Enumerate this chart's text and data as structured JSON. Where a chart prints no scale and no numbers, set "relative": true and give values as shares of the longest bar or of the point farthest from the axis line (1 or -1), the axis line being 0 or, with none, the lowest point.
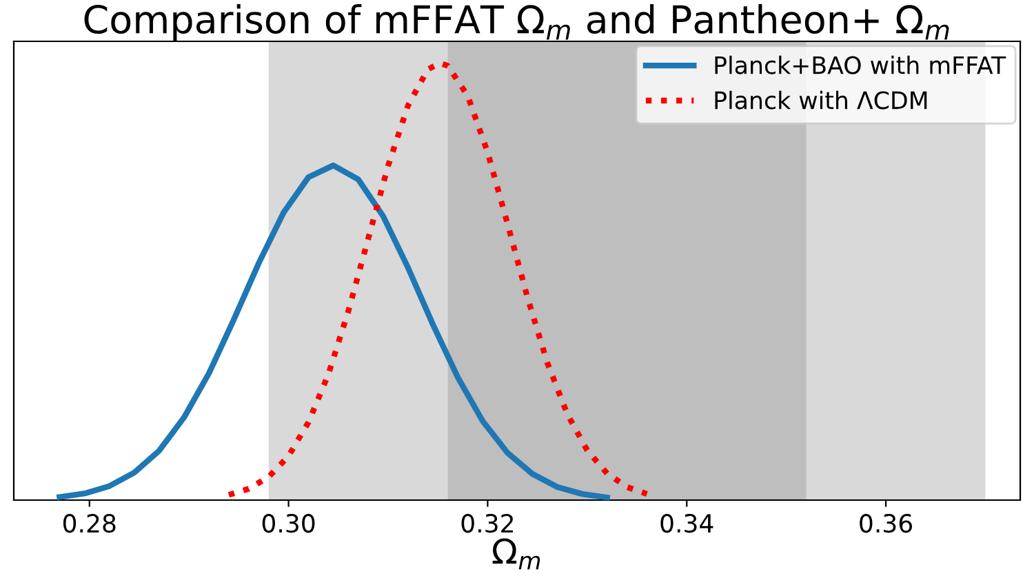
{
  "chart_data": {
    "type": "line",
    "title": "Comparison of mFFAT Ω$_{m}$ and Pantheon+ Ω$_{m}$",
    "xlabel": "Ω$_{m}$",
    "relative": true,
    "xlim": [
      0.2724,
      0.3735
    ],
    "xticks": [
      0.28,
      {
        "value": 0.3,
        "label": "0.30"
      },
      0.32,
      0.34,
      0.36
    ],
    "bands": [
      {
        "axis": "x",
        "from": 0.298,
        "to": 0.37,
        "color": "#d9d9d9"
      },
      {
        "axis": "x",
        "from": 0.316,
        "to": 0.352,
        "color": "#bebebe"
      }
    ],
    "series": [
      {
        "name": "Planck+BAO with mFFAT",
        "color": "#1f77b4",
        "line_style": "solid",
        "x": [
          0.277,
          0.2795,
          0.282,
          0.2845,
          0.287,
          0.2895,
          0.292,
          0.2945,
          0.297,
          0.2995,
          0.302,
          0.3045,
          0.307,
          0.3095,
          0.312,
          0.3145,
          0.317,
          0.3195,
          0.322,
          0.3245,
          0.327,
          0.3295,
          0.332
        ],
        "values": [
          0.007,
          0.015,
          0.032,
          0.063,
          0.113,
          0.189,
          0.29,
          0.413,
          0.542,
          0.658,
          0.739,
          0.766,
          0.734,
          0.65,
          0.532,
          0.402,
          0.281,
          0.181,
          0.108,
          0.06,
          0.03,
          0.014,
          0.006
        ]
      },
      {
        "name": "Planck with ΛCDM",
        "color": "#ff0000",
        "line_style": "dotted",
        "x": [
          0.294,
          0.296,
          0.298,
          0.3,
          0.302,
          0.304,
          0.306,
          0.308,
          0.31,
          0.312,
          0.314,
          0.3152,
          0.316,
          0.318,
          0.32,
          0.322,
          0.324,
          0.326,
          0.328,
          0.33,
          0.332,
          0.334,
          0.336
        ],
        "values": [
          0.012,
          0.026,
          0.053,
          0.101,
          0.178,
          0.288,
          0.432,
          0.598,
          0.765,
          0.903,
          0.986,
          1.0,
          0.994,
          0.925,
          0.796,
          0.632,
          0.464,
          0.314,
          0.197,
          0.114,
          0.061,
          0.03,
          0.014
        ]
      }
    ],
    "legend": "top right",
    "grid": false
  }
}
